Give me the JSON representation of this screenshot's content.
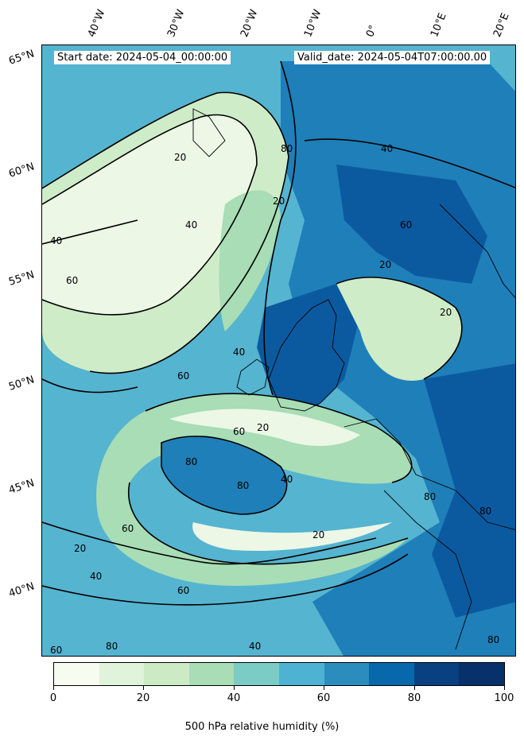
{
  "header": {
    "start_date": "Start date: 2024-05-04_00:00:00",
    "valid_date": "Valid_date: 2024-05-04T07:00:00.00"
  },
  "longitude_labels": [
    "40°W",
    "30°W",
    "20°W",
    "10°W",
    "0°",
    "10°E",
    "20°E"
  ],
  "latitude_labels": [
    "65°N",
    "60°N",
    "55°N",
    "50°N",
    "45°N",
    "40°N"
  ],
  "contour_labels": [
    "20",
    "40",
    "60",
    "80"
  ],
  "colorbar": {
    "title": "500 hPa relative humidity (%)",
    "tick_labels": [
      "0",
      "20",
      "40",
      "60",
      "80",
      "100"
    ],
    "colors": [
      "#f7fcf0",
      "#e0f3db",
      "#ccebc5",
      "#a8ddb5",
      "#7bccc4",
      "#4eb3d3",
      "#2b8cbe",
      "#0868ac",
      "#084081",
      "#08306b"
    ]
  },
  "palette": {
    "low": "#ecf7e6",
    "mid_low": "#cfecc8",
    "mid": "#a8ddb5",
    "mid_high": "#55b4d0",
    "high": "#1f7fb9",
    "very_high": "#0b5aa0"
  }
}
